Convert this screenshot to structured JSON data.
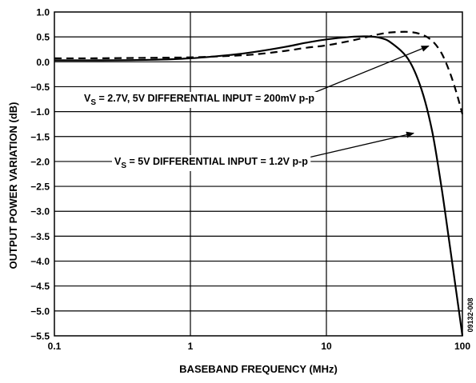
{
  "chart_data": {
    "type": "line",
    "title": "",
    "xlabel": "BASEBAND FREQUENCY (MHz)",
    "ylabel": "OUTPUT POWER VARIATION (dB)",
    "xscale": "log",
    "xlim": [
      0.1,
      100
    ],
    "ylim": [
      -5.5,
      1.0
    ],
    "grid": true,
    "x_ticks": [
      0.1,
      1,
      10,
      100
    ],
    "x_tick_labels": [
      "0.1",
      "1",
      "10",
      "100"
    ],
    "y_ticks": [
      1.0,
      0.5,
      0.0,
      -0.5,
      -1.0,
      -1.5,
      -2.0,
      -2.5,
      -3.0,
      -3.5,
      -4.0,
      -4.5,
      -5.0,
      -5.5
    ],
    "y_tick_labels": [
      "1.0",
      "0.5",
      "0.0",
      "−0.5",
      "−1.0",
      "−1.5",
      "−2.0",
      "−2.5",
      "−3.0",
      "−3.5",
      "−4.0",
      "−4.5",
      "−5.0",
      "−5.5"
    ],
    "series": [
      {
        "style": "solid",
        "color": "#000000",
        "x": [
          0.1,
          0.2,
          0.5,
          1,
          2,
          3,
          5,
          7,
          10,
          15,
          20,
          25,
          30,
          40,
          50,
          60,
          70,
          80,
          90,
          100
        ],
        "y": [
          0.03,
          0.03,
          0.04,
          0.07,
          0.14,
          0.2,
          0.3,
          0.38,
          0.45,
          0.5,
          0.51,
          0.48,
          0.38,
          0.05,
          -0.55,
          -1.4,
          -2.5,
          -3.6,
          -4.6,
          -5.5
        ]
      },
      {
        "style": "dashed",
        "color": "#000000",
        "x": [
          0.1,
          0.2,
          0.5,
          1,
          2,
          3,
          5,
          7,
          10,
          15,
          20,
          25,
          30,
          40,
          50,
          60,
          70,
          80,
          90,
          100
        ],
        "y": [
          0.07,
          0.07,
          0.08,
          0.09,
          0.12,
          0.15,
          0.22,
          0.28,
          0.33,
          0.42,
          0.5,
          0.56,
          0.59,
          0.6,
          0.55,
          0.42,
          0.18,
          -0.18,
          -0.6,
          -1.05
        ]
      }
    ],
    "annotations": [
      {
        "text_main": "V",
        "text_sub": "S",
        "text_rest": " = 2.7V, 5V DIFFERENTIAL INPUT = 200mV p-p",
        "arrow_to": [
          55,
          0.35
        ]
      },
      {
        "text_main": "V",
        "text_sub": "S",
        "text_rest": " = 5V DIFFERENTIAL INPUT = 1.2V p-p",
        "arrow_to": [
          45,
          -1.4
        ]
      }
    ],
    "code_label": "09132-008"
  }
}
